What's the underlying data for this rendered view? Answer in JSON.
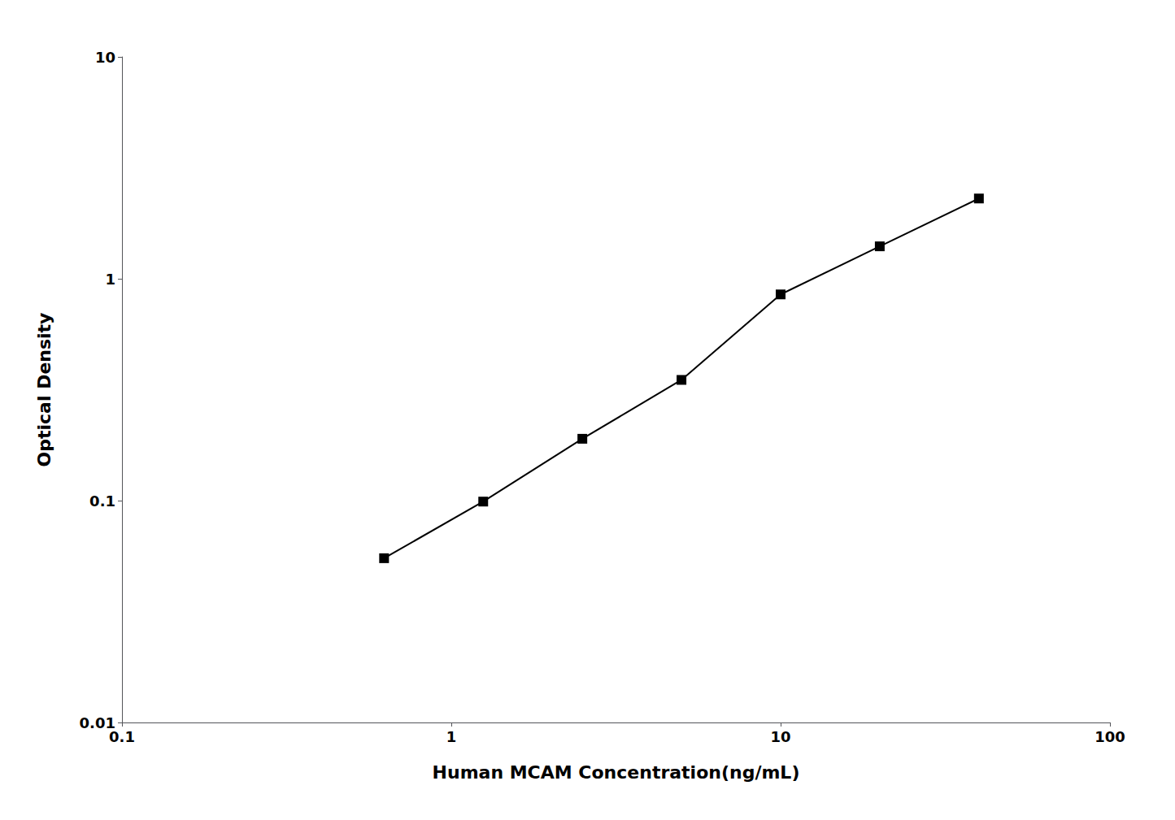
{
  "chart_data": {
    "type": "line",
    "xlabel": "Human MCAM Concentration(ng/mL)",
    "ylabel": "Optical Density",
    "x": [
      0.625,
      1.25,
      2.5,
      5.0,
      10.0,
      20.0,
      40.0
    ],
    "values": [
      0.055,
      0.099,
      0.19,
      0.35,
      0.85,
      1.4,
      2.3
    ],
    "xlim": [
      0.1,
      100
    ],
    "ylim": [
      0.01,
      10
    ],
    "xticks": [
      0.1,
      1,
      10,
      100
    ],
    "yticks": [
      0.01,
      0.1,
      1,
      10
    ],
    "log": true,
    "grid": false,
    "color": "#000000",
    "marker": "square",
    "line_style": "solid"
  }
}
